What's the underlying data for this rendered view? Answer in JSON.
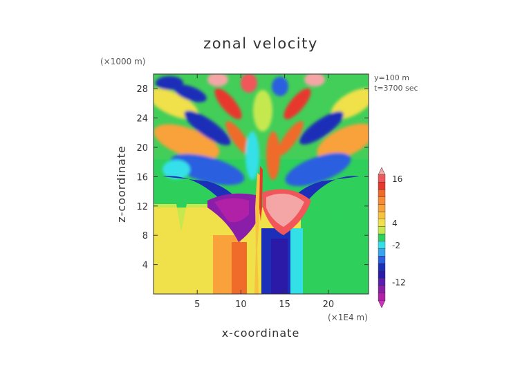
{
  "chart_data": {
    "type": "heatmap",
    "title": "zonal velocity",
    "xlabel": "x-coordinate",
    "ylabel": "z-coordinate",
    "x_unit": "(×1E4 m)",
    "y_unit": "(×1000 m)",
    "x_ticks": [
      5,
      10,
      15,
      20
    ],
    "y_ticks": [
      4,
      8,
      12,
      16,
      20,
      24,
      28
    ],
    "xlim": [
      0,
      24.6
    ],
    "ylim": [
      0,
      30
    ],
    "annotations": [
      "y=100 m",
      "t=3700 sec"
    ],
    "colorbar": {
      "labels": [
        16,
        4,
        -2,
        -12
      ],
      "levels": [
        {
          "value": 18,
          "color": "#f4a6a6"
        },
        {
          "value": 16,
          "color": "#f0565a"
        },
        {
          "value": 14,
          "color": "#e8382e"
        },
        {
          "value": 12,
          "color": "#f06a2a"
        },
        {
          "value": 10,
          "color": "#f78c34"
        },
        {
          "value": 8,
          "color": "#f9a13b"
        },
        {
          "value": 6,
          "color": "#f7c23e"
        },
        {
          "value": 4,
          "color": "#f0e04a"
        },
        {
          "value": 2,
          "color": "#c5e84f"
        },
        {
          "value": 0,
          "color": "#2fcf5c"
        },
        {
          "value": -2,
          "color": "#34e0e8"
        },
        {
          "value": -4,
          "color": "#3aa3f0"
        },
        {
          "value": -6,
          "color": "#2a5fe0"
        },
        {
          "value": -8,
          "color": "#1c2fb8"
        },
        {
          "value": -10,
          "color": "#2b1aa8"
        },
        {
          "value": -12,
          "color": "#5b1fb0"
        },
        {
          "value": -14,
          "color": "#8a1ea8"
        },
        {
          "value": -16,
          "color": "#b021a8"
        },
        {
          "value": -18,
          "color": "#d12fc0"
        }
      ]
    }
  }
}
